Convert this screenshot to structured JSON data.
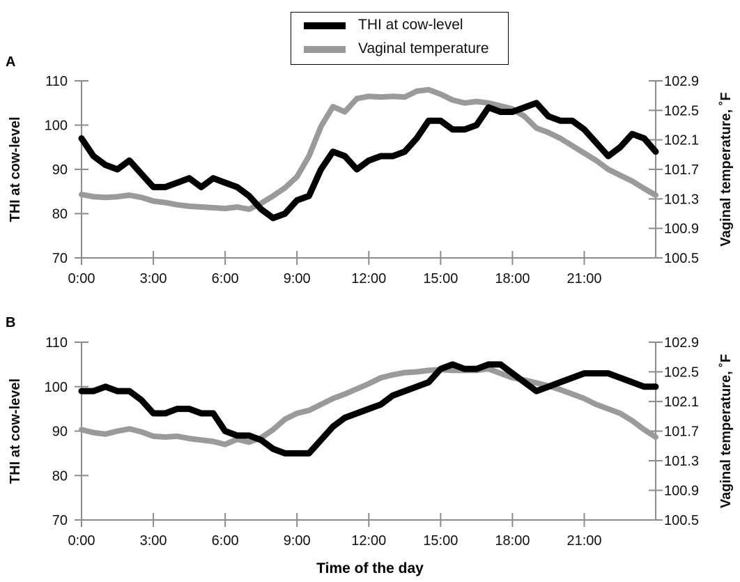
{
  "legend": {
    "items": [
      {
        "label": "THI at cow-level",
        "color": "#000000"
      },
      {
        "label": "Vaginal temperature",
        "color": "#9a9a9a"
      }
    ],
    "placement": "top-center"
  },
  "xlabel": "Time of the day",
  "chart_data": [
    {
      "panel": "A",
      "type": "line",
      "xlabel": "Time of the day",
      "ylabel": "THI at cow-level",
      "ylabel_right": "Vaginal temperature, ˚F",
      "xlim": [
        "0:00",
        "23:59"
      ],
      "ylim": [
        70,
        110
      ],
      "ylim_right": [
        100.5,
        102.9
      ],
      "x_ticks": [
        "0:00",
        "3:00",
        "6:00",
        "9:00",
        "12:00",
        "15:00",
        "18:00",
        "21:00"
      ],
      "y_ticks": [
        "70",
        "80",
        "90",
        "100",
        "110"
      ],
      "y_ticks_right": [
        "100.5",
        "100.9",
        "101.3",
        "101.7",
        "102.1",
        "102.5",
        "102.9"
      ],
      "grid": false,
      "series": [
        {
          "name": "THI at cow-level",
          "axis": "left",
          "color": "#000000",
          "x": [
            "0:00",
            "0:30",
            "1:00",
            "1:30",
            "2:00",
            "2:30",
            "3:00",
            "3:30",
            "4:00",
            "4:30",
            "5:00",
            "5:30",
            "6:00",
            "6:30",
            "7:00",
            "7:30",
            "8:00",
            "8:30",
            "9:00",
            "9:30",
            "10:00",
            "10:30",
            "11:00",
            "11:30",
            "12:00",
            "12:30",
            "13:00",
            "13:30",
            "14:00",
            "14:30",
            "15:00",
            "15:30",
            "16:00",
            "16:30",
            "17:00",
            "17:30",
            "18:00",
            "18:30",
            "19:00",
            "19:30",
            "20:00",
            "20:30",
            "21:00",
            "21:30",
            "22:00",
            "22:30",
            "23:00",
            "23:30",
            "23:59"
          ],
          "values": [
            97,
            93,
            91,
            90,
            92,
            89,
            86,
            86,
            87,
            88,
            86,
            88,
            87,
            86,
            84,
            81,
            79,
            80,
            83,
            84,
            90,
            94,
            93,
            90,
            92,
            93,
            93,
            94,
            97,
            101,
            101,
            99,
            99,
            100,
            104,
            103,
            103,
            104,
            105,
            102,
            101,
            101,
            99,
            96,
            93,
            95,
            98,
            97,
            94
          ]
        },
        {
          "name": "Vaginal temperature",
          "axis": "right",
          "color": "#9a9a9a",
          "x": [
            "0:00",
            "0:30",
            "1:00",
            "1:30",
            "2:00",
            "2:30",
            "3:00",
            "3:30",
            "4:00",
            "4:30",
            "5:00",
            "5:30",
            "6:00",
            "6:30",
            "7:00",
            "7:30",
            "8:00",
            "8:30",
            "9:00",
            "9:30",
            "10:00",
            "10:30",
            "11:00",
            "11:30",
            "12:00",
            "12:30",
            "13:00",
            "13:30",
            "14:00",
            "14:30",
            "15:00",
            "15:30",
            "16:00",
            "16:30",
            "17:00",
            "17:30",
            "18:00",
            "18:30",
            "19:00",
            "19:30",
            "20:00",
            "20:30",
            "21:00",
            "21:30",
            "22:00",
            "22:30",
            "23:00",
            "23:30",
            "23:59"
          ],
          "values": [
            101.36,
            101.33,
            101.32,
            101.33,
            101.35,
            101.32,
            101.27,
            101.25,
            101.22,
            101.2,
            101.19,
            101.18,
            101.17,
            101.19,
            101.16,
            101.24,
            101.34,
            101.45,
            101.6,
            101.88,
            102.28,
            102.55,
            102.48,
            102.66,
            102.69,
            102.68,
            102.69,
            102.68,
            102.76,
            102.78,
            102.72,
            102.64,
            102.6,
            102.62,
            102.6,
            102.56,
            102.52,
            102.42,
            102.26,
            102.2,
            102.12,
            102.02,
            101.92,
            101.82,
            101.7,
            101.62,
            101.54,
            101.44,
            101.35
          ]
        }
      ]
    },
    {
      "panel": "B",
      "type": "line",
      "xlabel": "Time of the day",
      "ylabel": "THI at cow-level",
      "ylabel_right": "Vaginal temperature, ˚F",
      "xlim": [
        "0:00",
        "23:59"
      ],
      "ylim": [
        70,
        110
      ],
      "ylim_right": [
        100.5,
        102.9
      ],
      "x_ticks": [
        "0:00",
        "3:00",
        "6:00",
        "9:00",
        "12:00",
        "15:00",
        "18:00",
        "21:00"
      ],
      "y_ticks": [
        "70",
        "80",
        "90",
        "100",
        "110"
      ],
      "y_ticks_right": [
        "100.5",
        "100.9",
        "101.3",
        "101.7",
        "102.1",
        "102.5",
        "102.9"
      ],
      "grid": false,
      "series": [
        {
          "name": "THI at cow-level",
          "axis": "left",
          "color": "#000000",
          "x": [
            "0:00",
            "0:30",
            "1:00",
            "1:30",
            "2:00",
            "2:30",
            "3:00",
            "3:30",
            "4:00",
            "4:30",
            "5:00",
            "5:30",
            "6:00",
            "6:30",
            "7:00",
            "7:30",
            "8:00",
            "8:30",
            "9:00",
            "9:30",
            "10:00",
            "10:30",
            "11:00",
            "11:30",
            "12:00",
            "12:30",
            "13:00",
            "13:30",
            "14:00",
            "14:30",
            "15:00",
            "15:30",
            "16:00",
            "16:30",
            "17:00",
            "17:30",
            "18:00",
            "18:30",
            "19:00",
            "19:30",
            "20:00",
            "20:30",
            "21:00",
            "21:30",
            "22:00",
            "22:30",
            "23:00",
            "23:30",
            "23:59"
          ],
          "values": [
            99,
            99,
            100,
            99,
            99,
            97,
            94,
            94,
            95,
            95,
            94,
            94,
            90,
            89,
            89,
            88,
            86,
            85,
            85,
            85,
            88,
            91,
            93,
            94,
            95,
            96,
            98,
            99,
            100,
            101,
            104,
            105,
            104,
            104,
            105,
            105,
            103,
            101,
            99,
            100,
            101,
            102,
            103,
            103,
            103,
            102,
            101,
            100,
            100
          ]
        },
        {
          "name": "Vaginal temperature",
          "axis": "right",
          "color": "#9a9a9a",
          "x": [
            "0:00",
            "0:30",
            "1:00",
            "1:30",
            "2:00",
            "2:30",
            "3:00",
            "3:30",
            "4:00",
            "4:30",
            "5:00",
            "5:30",
            "6:00",
            "6:30",
            "7:00",
            "7:30",
            "8:00",
            "8:30",
            "9:00",
            "9:30",
            "10:00",
            "10:30",
            "11:00",
            "11:30",
            "12:00",
            "12:30",
            "13:00",
            "13:30",
            "14:00",
            "14:30",
            "15:00",
            "15:30",
            "16:00",
            "16:30",
            "17:00",
            "17:30",
            "18:00",
            "18:30",
            "19:00",
            "19:30",
            "20:00",
            "20:30",
            "21:00",
            "21:30",
            "22:00",
            "22:30",
            "23:00",
            "23:30",
            "23:59"
          ],
          "values": [
            101.72,
            101.68,
            101.66,
            101.7,
            101.73,
            101.69,
            101.63,
            101.62,
            101.63,
            101.6,
            101.58,
            101.56,
            101.52,
            101.59,
            101.55,
            101.61,
            101.72,
            101.86,
            101.94,
            101.98,
            102.06,
            102.14,
            102.2,
            102.27,
            102.34,
            102.42,
            102.46,
            102.49,
            102.5,
            102.52,
            102.53,
            102.52,
            102.52,
            102.52,
            102.54,
            102.48,
            102.42,
            102.39,
            102.35,
            102.31,
            102.26,
            102.2,
            102.14,
            102.06,
            102.0,
            101.94,
            101.84,
            101.72,
            101.62
          ]
        }
      ]
    }
  ]
}
